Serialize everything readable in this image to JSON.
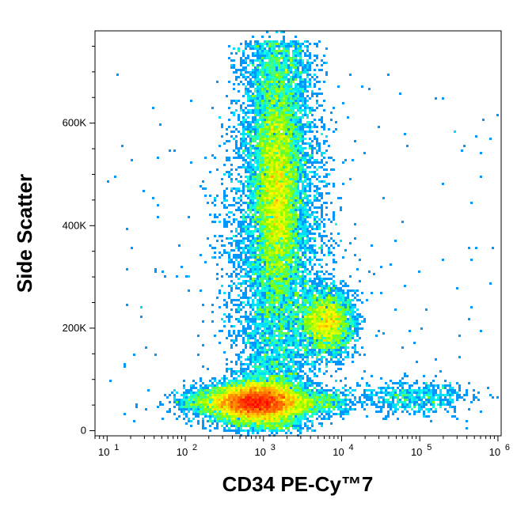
{
  "chart_data": {
    "type": "scatter",
    "subtype": "flow cytometry density dot plot (pseudocolor)",
    "xlabel": "CD34 PE-Cy™7",
    "ylabel": "Side Scatter",
    "x_scale": "log",
    "xlim": [
      7,
      1100000
    ],
    "ylim": [
      -10000,
      780000
    ],
    "x_ticks": [
      {
        "value": 10,
        "base": "10",
        "exp": "1"
      },
      {
        "value": 100,
        "base": "10",
        "exp": "2"
      },
      {
        "value": 1000,
        "base": "10",
        "exp": "3"
      },
      {
        "value": 10000,
        "base": "10",
        "exp": "4"
      },
      {
        "value": 100000,
        "base": "10",
        "exp": "5"
      },
      {
        "value": 1000000,
        "base": "10",
        "exp": "6"
      }
    ],
    "y_ticks": [
      {
        "value": 0,
        "label": "0"
      },
      {
        "value": 200000,
        "label": "200K"
      },
      {
        "value": 400000,
        "label": "400K"
      },
      {
        "value": 600000,
        "label": "600K"
      }
    ],
    "populations": [
      {
        "center_x": 800,
        "center_y": 55000,
        "spread_log_x": 0.28,
        "spread_y": 20000,
        "density": "very high"
      },
      {
        "center_x": 1500,
        "center_y": 460000,
        "spread_log_x": 0.15,
        "spread_y": 115000,
        "density": "high"
      },
      {
        "center_x": 6500,
        "center_y": 210000,
        "spread_log_x": 0.17,
        "spread_y": 32000,
        "density": "medium"
      },
      {
        "center_x": 80000,
        "center_y": 65000,
        "spread_log_x": 0.35,
        "spread_y": 16000,
        "density": "low"
      }
    ],
    "color_scale": [
      "#0000ff",
      "#0090ff",
      "#00ffff",
      "#80ff00",
      "#ffff00",
      "#ff8000",
      "#ff0000"
    ],
    "grid": false,
    "legend": "none"
  }
}
